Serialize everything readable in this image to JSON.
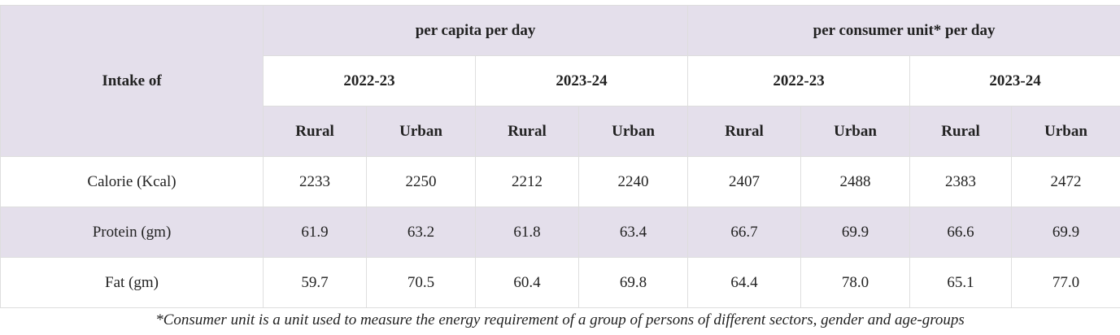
{
  "header": {
    "corner_label": "Intake of",
    "groups": [
      "per capita per day",
      "per consumer unit* per day"
    ],
    "years": [
      "2022-23",
      "2023-24",
      "2022-23",
      "2023-24"
    ],
    "sectors": [
      "Rural",
      "Urban",
      "Rural",
      "Urban",
      "Rural",
      "Urban",
      "Rural",
      "Urban"
    ]
  },
  "rows": [
    {
      "label": "Calorie (Kcal)",
      "values": [
        "2233",
        "2250",
        "2212",
        "2240",
        "2407",
        "2488",
        "2383",
        "2472"
      ]
    },
    {
      "label": "Protein (gm)",
      "values": [
        "61.9",
        "63.2",
        "61.8",
        "63.4",
        "66.7",
        "69.9",
        "66.6",
        "69.9"
      ]
    },
    {
      "label": "Fat (gm)",
      "values": [
        "59.7",
        "70.5",
        "60.4",
        "69.8",
        "64.4",
        "78.0",
        "65.1",
        "77.0"
      ]
    }
  ],
  "footnote": "*Consumer unit is a unit used to measure the energy requirement of a group of persons of different sectors, gender and age-groups",
  "colors": {
    "shaded_row": "#e4dfeb",
    "plain_row": "#ffffff",
    "border": "#dedede"
  }
}
